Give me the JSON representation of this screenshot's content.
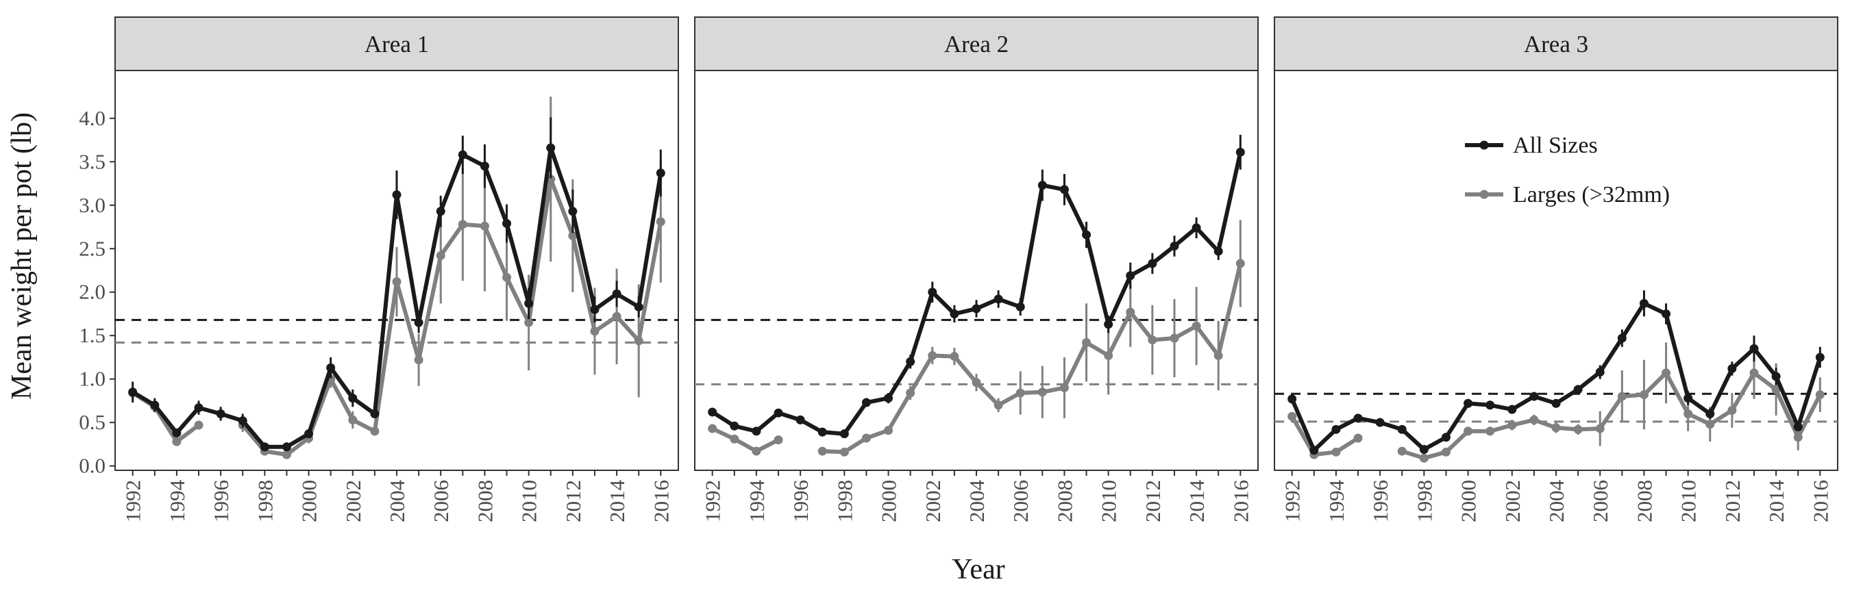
{
  "chart_data": {
    "type": "line",
    "xlabel": "Year",
    "ylabel": "Mean weight per pot (lb)",
    "ylim": [
      -0.05,
      4.55
    ],
    "yticks": [
      "0.0",
      "0.5",
      "1.0",
      "1.5",
      "2.0",
      "2.5",
      "3.0",
      "3.5",
      "4.0"
    ],
    "xlim": [
      1991.2,
      2016.8
    ],
    "xticks": [
      "1992",
      "1994",
      "1996",
      "1998",
      "2000",
      "2002",
      "2004",
      "2006",
      "2008",
      "2010",
      "2012",
      "2014",
      "2016"
    ],
    "legend": {
      "placement": "top-right of Area 3 panel",
      "entries": [
        "All Sizes",
        "Larges (>32mm)"
      ]
    },
    "colors": {
      "all_sizes": "#1a1a1a",
      "larges": "#808080",
      "strip_bg": "#d9d9d9"
    },
    "panels": [
      {
        "label": "Area 1",
        "series": [
          {
            "name": "All Sizes",
            "x": [
              1992,
              1993,
              1994,
              1995,
              1996,
              1997,
              1998,
              1999,
              2000,
              2001,
              2002,
              2003,
              2004,
              2005,
              2006,
              2007,
              2008,
              2009,
              2010,
              2011,
              2012,
              2013,
              2014,
              2015,
              2016
            ],
            "y": [
              0.85,
              0.7,
              0.38,
              0.67,
              0.6,
              0.52,
              0.22,
              0.22,
              0.37,
              1.13,
              0.78,
              0.6,
              3.12,
              1.65,
              2.93,
              3.58,
              3.45,
              2.79,
              1.87,
              3.66,
              2.93,
              1.8,
              1.98,
              1.83,
              3.37
            ],
            "err": [
              0.12,
              0.08,
              0.05,
              0.08,
              0.08,
              0.08,
              0.04,
              0.05,
              0.05,
              0.12,
              0.1,
              0.05,
              0.28,
              0.12,
              0.18,
              0.22,
              0.25,
              0.22,
              0.18,
              0.35,
              0.25,
              0.15,
              0.15,
              0.12,
              0.27
            ]
          },
          {
            "name": "Larges (>32mm)",
            "x": [
              1992,
              1993,
              1994,
              1995,
              1996,
              1997,
              1998,
              1999,
              2000,
              2001,
              2002,
              2003,
              2004,
              2005,
              2006,
              2007,
              2008,
              2009,
              2010,
              2011,
              2012,
              2013,
              2014,
              2015,
              2016
            ],
            "y": [
              0.84,
              0.68,
              0.28,
              0.47,
              null,
              0.47,
              0.17,
              0.13,
              0.32,
              1.0,
              0.53,
              0.4,
              2.12,
              1.22,
              2.42,
              2.78,
              2.76,
              2.17,
              1.65,
              3.3,
              2.65,
              1.55,
              1.72,
              1.44,
              2.81
            ],
            "err": [
              0.05,
              0.05,
              0.05,
              0.05,
              null,
              0.08,
              0.04,
              0.04,
              0.06,
              0.1,
              0.1,
              0.05,
              0.4,
              0.3,
              0.55,
              0.65,
              0.75,
              0.5,
              0.55,
              0.95,
              0.65,
              0.5,
              0.55,
              0.65,
              0.7
            ]
          }
        ],
        "reference_lines": [
          {
            "series": "All Sizes",
            "y": 1.68
          },
          {
            "series": "Larges (>32mm)",
            "y": 1.42
          }
        ]
      },
      {
        "label": "Area 2",
        "series": [
          {
            "name": "All Sizes",
            "x": [
              1992,
              1993,
              1994,
              1995,
              1996,
              1997,
              1998,
              1999,
              2000,
              2001,
              2002,
              2003,
              2004,
              2005,
              2006,
              2007,
              2008,
              2009,
              2010,
              2011,
              2012,
              2013,
              2014,
              2015,
              2016
            ],
            "y": [
              0.62,
              0.46,
              0.4,
              0.61,
              0.53,
              0.39,
              0.37,
              0.73,
              0.78,
              1.2,
              2.0,
              1.75,
              1.81,
              1.92,
              1.83,
              3.23,
              3.18,
              2.66,
              1.63,
              2.19,
              2.33,
              2.53,
              2.74,
              2.47,
              3.61
            ],
            "err": [
              0.04,
              0.04,
              0.03,
              0.04,
              0.04,
              0.03,
              0.03,
              0.05,
              0.06,
              0.08,
              0.12,
              0.1,
              0.1,
              0.1,
              0.1,
              0.18,
              0.18,
              0.15,
              0.1,
              0.15,
              0.12,
              0.12,
              0.12,
              0.1,
              0.2
            ]
          },
          {
            "name": "Larges (>32mm)",
            "x": [
              1992,
              1993,
              1994,
              1995,
              1996,
              1997,
              1998,
              1999,
              2000,
              2001,
              2002,
              2003,
              2004,
              2005,
              2006,
              2007,
              2008,
              2009,
              2010,
              2011,
              2012,
              2013,
              2014,
              2015,
              2016
            ],
            "y": [
              0.43,
              0.31,
              0.17,
              0.3,
              null,
              0.17,
              0.16,
              0.32,
              0.41,
              0.84,
              1.27,
              1.26,
              0.96,
              0.7,
              0.84,
              0.85,
              0.9,
              1.42,
              1.27,
              1.77,
              1.45,
              1.47,
              1.61,
              1.27,
              2.33
            ],
            "err": [
              0.03,
              0.03,
              0.03,
              0.03,
              null,
              0.03,
              0.03,
              0.04,
              0.05,
              0.08,
              0.1,
              0.1,
              0.1,
              0.08,
              0.25,
              0.3,
              0.35,
              0.45,
              0.45,
              0.4,
              0.4,
              0.45,
              0.45,
              0.4,
              0.5
            ]
          }
        ],
        "reference_lines": [
          {
            "series": "All Sizes",
            "y": 1.68
          },
          {
            "series": "Larges (>32mm)",
            "y": 0.94
          }
        ]
      },
      {
        "label": "Area 3",
        "series": [
          {
            "name": "All Sizes",
            "x": [
              1992,
              1993,
              1994,
              1995,
              1996,
              1997,
              1998,
              1999,
              2000,
              2001,
              2002,
              2003,
              2004,
              2005,
              2006,
              2007,
              2008,
              2009,
              2010,
              2011,
              2012,
              2013,
              2014,
              2015,
              2016
            ],
            "y": [
              0.77,
              0.18,
              0.42,
              0.55,
              0.5,
              0.42,
              0.19,
              0.33,
              0.72,
              0.7,
              0.65,
              0.8,
              0.72,
              0.88,
              1.08,
              1.47,
              1.87,
              1.75,
              0.78,
              0.6,
              1.12,
              1.35,
              1.03,
              0.45,
              1.25
            ],
            "err": [
              0.05,
              0.03,
              0.04,
              0.04,
              0.04,
              0.04,
              0.03,
              0.04,
              0.05,
              0.05,
              0.05,
              0.05,
              0.05,
              0.05,
              0.08,
              0.1,
              0.15,
              0.12,
              0.08,
              0.06,
              0.08,
              0.15,
              0.1,
              0.05,
              0.12
            ]
          },
          {
            "name": "Larges (>32mm)",
            "x": [
              1992,
              1993,
              1994,
              1995,
              1996,
              1997,
              1998,
              1999,
              2000,
              2001,
              2002,
              2003,
              2004,
              2005,
              2006,
              2007,
              2008,
              2009,
              2010,
              2011,
              2012,
              2013,
              2014,
              2015,
              2016
            ],
            "y": [
              0.57,
              0.13,
              0.16,
              0.32,
              null,
              0.17,
              0.09,
              0.16,
              0.4,
              0.4,
              0.47,
              0.53,
              0.44,
              0.42,
              0.43,
              0.8,
              0.82,
              1.07,
              0.6,
              0.48,
              0.64,
              1.07,
              0.88,
              0.33,
              0.82
            ],
            "err": [
              0.04,
              0.03,
              0.03,
              0.04,
              null,
              0.03,
              0.02,
              0.03,
              0.05,
              0.05,
              0.06,
              0.06,
              0.06,
              0.06,
              0.2,
              0.3,
              0.4,
              0.35,
              0.2,
              0.2,
              0.2,
              0.3,
              0.3,
              0.15,
              0.2
            ]
          }
        ],
        "reference_lines": [
          {
            "series": "All Sizes",
            "y": 0.83
          },
          {
            "series": "Larges (>32mm)",
            "y": 0.51
          }
        ]
      }
    ]
  }
}
